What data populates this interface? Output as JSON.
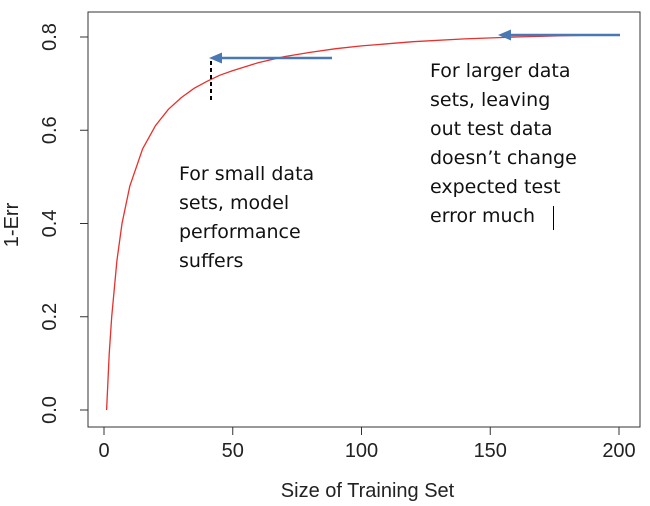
{
  "chart_data": {
    "type": "line",
    "title": "",
    "xlabel": "Size of Training Set",
    "ylabel": "1-Err",
    "xlim": [
      0,
      205
    ],
    "ylim": [
      0,
      0.83
    ],
    "xticks": [
      0,
      50,
      100,
      150,
      200
    ],
    "xtick_labels": [
      "0",
      "50",
      "100",
      "150",
      "200"
    ],
    "yticks": [
      0.0,
      0.2,
      0.4,
      0.6,
      0.8
    ],
    "ytick_labels": [
      "0.0",
      "0.2",
      "0.4",
      "0.6",
      "0.8"
    ],
    "grid": false,
    "series": [
      {
        "color": "#e8302c",
        "x": [
          1,
          2,
          3,
          5,
          7,
          10,
          15,
          20,
          25,
          30,
          35,
          40,
          45,
          50,
          60,
          70,
          80,
          90,
          100,
          120,
          140,
          160,
          180,
          200
        ],
        "y": [
          0.0,
          0.12,
          0.2,
          0.32,
          0.4,
          0.48,
          0.56,
          0.61,
          0.645,
          0.67,
          0.69,
          0.705,
          0.718,
          0.728,
          0.745,
          0.758,
          0.767,
          0.775,
          0.781,
          0.79,
          0.796,
          0.8,
          0.803,
          0.805
        ]
      }
    ],
    "annotations": {
      "small_note": "For small data\nsets, model\nperformance\nsuffers",
      "large_note": "For larger data\nsets, leaving\nout test data\ndoesn’t change\nexpected test\nerror much",
      "arrow_color": "#4a78b5",
      "dashed_color": "#000000"
    }
  }
}
